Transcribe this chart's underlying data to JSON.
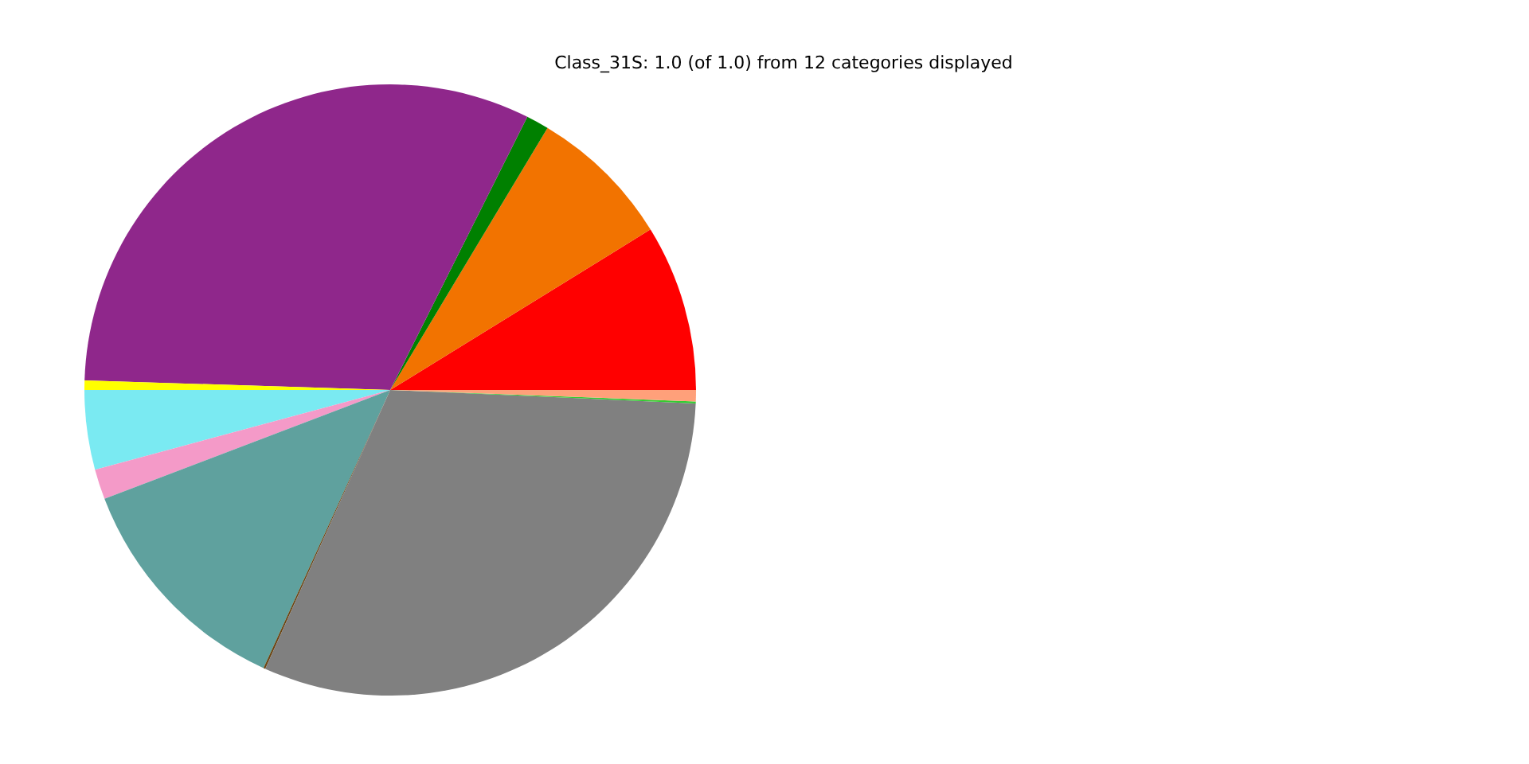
{
  "chart_data": {
    "type": "pie",
    "title": "Class_31S: 1.0 (of 1.0) from 12 categories displayed",
    "categories": [
      null,
      null,
      null,
      null,
      null,
      null,
      null,
      null,
      null,
      null,
      null,
      null
    ],
    "values": [
      8.8,
      7.6,
      1.2,
      31.9,
      0.5,
      4.2,
      1.6,
      12.4,
      0.1,
      31.0,
      0.1,
      0.6
    ],
    "colors": [
      "#ff0000",
      "#f27300",
      "#008000",
      "#8f278b",
      "#ffff00",
      "#7aeaf2",
      "#f49ac8",
      "#5fa19e",
      "#6b4513",
      "#808080",
      "#33cc33",
      "#ffa07a"
    ]
  }
}
